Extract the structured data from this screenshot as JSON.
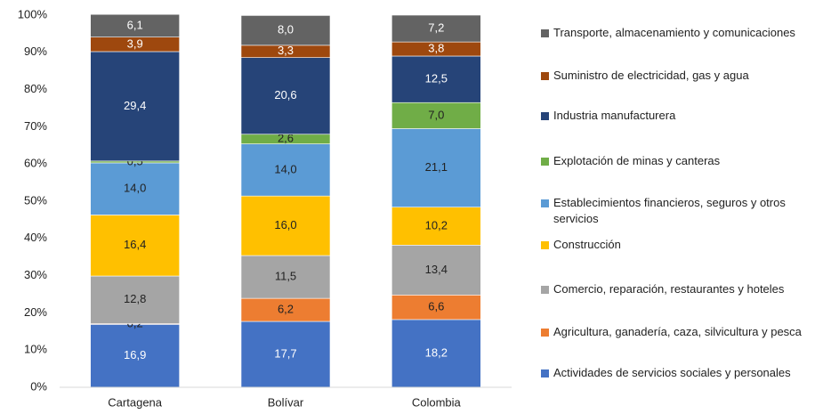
{
  "chart_data": {
    "type": "stacked_bar",
    "categories": [
      "Cartagena",
      "Bolívar",
      "Colombia"
    ],
    "ylim": [
      0,
      100
    ],
    "yticks": [
      {
        "value": 0,
        "label": "0%"
      },
      {
        "value": 10,
        "label": "10%"
      },
      {
        "value": 20,
        "label": "20%"
      },
      {
        "value": 30,
        "label": "30%"
      },
      {
        "value": 40,
        "label": "40%"
      },
      {
        "value": 50,
        "label": "50%"
      },
      {
        "value": 60,
        "label": "60%"
      },
      {
        "value": 70,
        "label": "70%"
      },
      {
        "value": 80,
        "label": "80%"
      },
      {
        "value": 90,
        "label": "90%"
      },
      {
        "value": 100,
        "label": "100%"
      }
    ],
    "grid": false,
    "legend": "right",
    "series": [
      {
        "name": "Actividades de servicios sociales y personales",
        "color": "#4472c4",
        "values": [
          16.9,
          17.7,
          18.2
        ],
        "value_labels": [
          "16,9",
          "17,7",
          "18,2"
        ]
      },
      {
        "name": "Agricultura, ganadería, caza, silvicultura y pesca",
        "color": "#ed7d31",
        "values": [
          0.2,
          6.2,
          6.6
        ],
        "value_labels": [
          "0,2",
          "6,2",
          "6,6"
        ]
      },
      {
        "name": "Comercio, reparación, restaurantes y hoteles",
        "color": "#a5a5a5",
        "values": [
          12.8,
          11.5,
          13.4
        ],
        "value_labels": [
          "12,8",
          "11,5",
          "13,4"
        ]
      },
      {
        "name": "Construcción",
        "color": "#ffc000",
        "values": [
          16.4,
          16.0,
          10.2
        ],
        "value_labels": [
          "16,4",
          "16,0",
          "10,2"
        ]
      },
      {
        "name": "Establecimientos financieros, seguros y otros servicios",
        "color": "#5b9bd5",
        "values": [
          14.0,
          14.0,
          21.1
        ],
        "value_labels": [
          "14,0",
          "14,0",
          "21,1"
        ]
      },
      {
        "name": "Explotación de minas y canteras",
        "color": "#70ad47",
        "values": [
          0.5,
          2.6,
          7.0
        ],
        "value_labels": [
          "0,5",
          "2,6",
          "7,0"
        ]
      },
      {
        "name": "Industria manufacturera",
        "color": "#264478",
        "values": [
          29.4,
          20.6,
          12.5
        ],
        "value_labels": [
          "29,4",
          "20,6",
          "12,5"
        ]
      },
      {
        "name": "Suministro de electricidad, gas y agua",
        "color": "#9e480e",
        "values": [
          3.9,
          3.3,
          3.8
        ],
        "value_labels": [
          "3,9",
          "3,3",
          "3,8"
        ]
      },
      {
        "name": "Transporte, almacenamiento y comunicaciones",
        "color": "#636363",
        "values": [
          6.1,
          8.0,
          7.2
        ],
        "value_labels": [
          "6,1",
          "8,0",
          "7,2"
        ]
      }
    ]
  }
}
